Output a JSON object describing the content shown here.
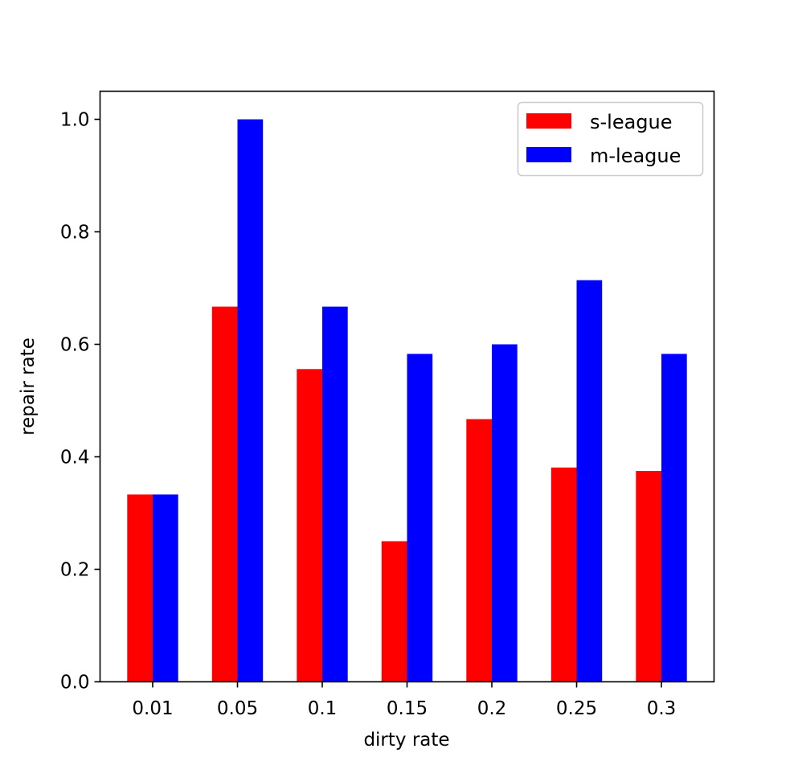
{
  "chart_data": {
    "type": "bar",
    "title": "",
    "xlabel": "dirty rate",
    "ylabel": "repair rate",
    "categories": [
      "0.01",
      "0.05",
      "0.1",
      "0.15",
      "0.2",
      "0.25",
      "0.3"
    ],
    "series": [
      {
        "name": "s-league",
        "color": "#ff0000",
        "values": [
          0.333,
          0.667,
          0.556,
          0.25,
          0.467,
          0.381,
          0.375
        ]
      },
      {
        "name": "m-league",
        "color": "#0000ff",
        "values": [
          0.333,
          1.0,
          0.667,
          0.583,
          0.6,
          0.714,
          0.583
        ]
      }
    ],
    "ylim": [
      0,
      1.05
    ],
    "yticks": [
      "0.0",
      "0.2",
      "0.4",
      "0.6",
      "0.8",
      "1.0"
    ],
    "grid": false,
    "legend_position": "top-right"
  }
}
